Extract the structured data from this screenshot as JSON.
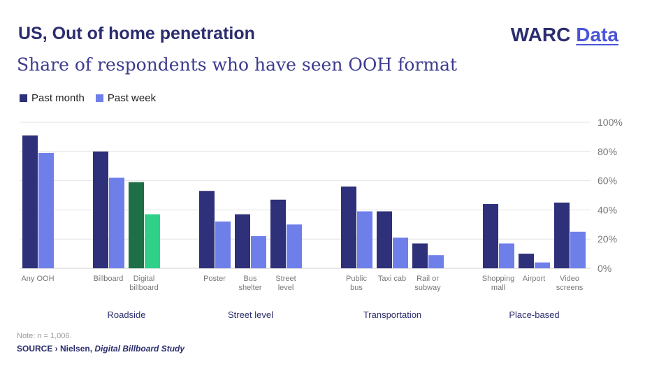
{
  "header": {
    "title": "US, Out of home penetration",
    "subtitle": "Share of respondents who have seen OOH format",
    "brand_name": "WARC",
    "brand_data": "Data"
  },
  "legend": {
    "past_month": "Past month",
    "past_week": "Past week"
  },
  "colors": {
    "past_month": "#2e3079",
    "past_week": "#6f7fea",
    "digital_month": "#1e6e48",
    "digital_week": "#2fd087",
    "grid": "#e3e3e3",
    "axis_text": "#777777"
  },
  "chart_data": {
    "type": "bar",
    "title": "US, Out of home penetration",
    "subtitle": "Share of respondents who have seen OOH format",
    "ylim": [
      0,
      100
    ],
    "yticks": [
      "100%",
      "80%",
      "60%",
      "40%",
      "20%",
      "0%"
    ],
    "ytick_values": [
      100,
      80,
      60,
      40,
      20,
      0
    ],
    "y_axis_side": "right",
    "grid": true,
    "legend_position": "top-left",
    "categories": [
      {
        "label": [
          "Any OOH"
        ],
        "group": ""
      },
      {
        "label": [
          "Billboard"
        ],
        "group": "Roadside"
      },
      {
        "label": [
          "Digital",
          "billboard"
        ],
        "group": "Roadside",
        "highlight": true
      },
      {
        "label": [
          "Poster"
        ],
        "group": "Street level"
      },
      {
        "label": [
          "Bus",
          "shelter"
        ],
        "group": "Street level"
      },
      {
        "label": [
          "Street",
          "level"
        ],
        "group": "Street level"
      },
      {
        "label": [
          "Public",
          "bus"
        ],
        "group": "Transportation"
      },
      {
        "label": [
          "Taxi cab"
        ],
        "group": "Transportation"
      },
      {
        "label": [
          "Rail or",
          "subway"
        ],
        "group": "Transportation"
      },
      {
        "label": [
          "Shopping",
          "mall"
        ],
        "group": "Place-based"
      },
      {
        "label": [
          "Airport"
        ],
        "group": "Place-based"
      },
      {
        "label": [
          "Video",
          "screens"
        ],
        "group": "Place-based"
      }
    ],
    "groups": [
      "Roadside",
      "Street level",
      "Transportation",
      "Place-based"
    ],
    "series": [
      {
        "name": "Past month",
        "values": [
          91,
          80,
          59,
          53,
          37,
          47,
          56,
          39,
          17,
          44,
          10,
          45
        ]
      },
      {
        "name": "Past week",
        "values": [
          79,
          62,
          37,
          32,
          22,
          30,
          39,
          21,
          9,
          17,
          4,
          25
        ]
      }
    ]
  },
  "footer": {
    "note": "Note: n = 1,006.",
    "source_prefix": "SOURCE",
    "source_sep": " › Nielsen, ",
    "source_study": "Digital Billboard Study"
  }
}
